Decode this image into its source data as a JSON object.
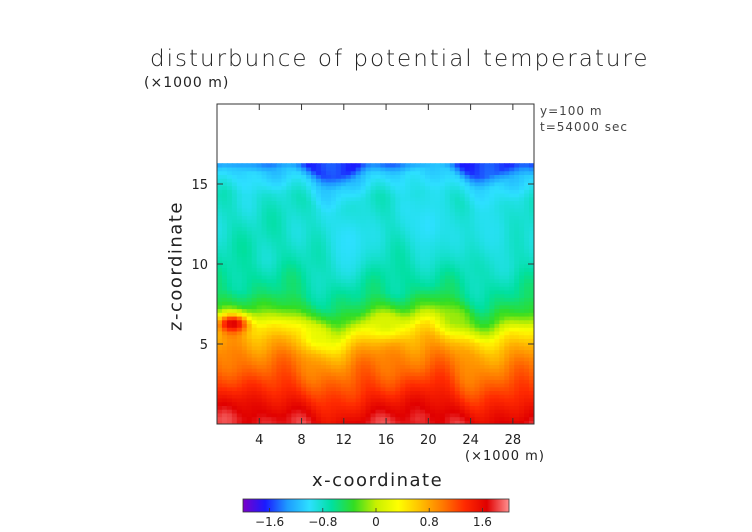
{
  "chart_data": {
    "type": "heatmap",
    "title": "disturbunce of potential temperature",
    "xlabel": "x-coordinate",
    "ylabel": "z-coordinate",
    "x_unit": "(×1000 m)",
    "y_unit": "(×1000 m)",
    "annotations": [
      "y=100 m",
      "t=54000 sec"
    ],
    "xlim": [
      0,
      30
    ],
    "ylim": [
      0,
      20
    ],
    "x_ticks": [
      4,
      8,
      12,
      16,
      20,
      24,
      28
    ],
    "y_ticks": [
      5,
      10,
      15
    ],
    "data_top_z": 16.3,
    "colorbar": {
      "range": [
        -2.0,
        2.0
      ],
      "ticks": [
        -1.6,
        -0.8,
        0,
        0.8,
        1.6
      ],
      "tick_labels": [
        "−1.6",
        "−0.8",
        "0",
        "0.8",
        "1.6"
      ],
      "colors": [
        "#7a00c8",
        "#1a1aff",
        "#1e9bff",
        "#2de0ff",
        "#00e0a0",
        "#33dd22",
        "#c8f000",
        "#ffff00",
        "#ffc000",
        "#ff7a00",
        "#ff2a00",
        "#e00000",
        "#ff9090"
      ]
    },
    "z_profile": [
      {
        "z": 0.0,
        "value": 1.75
      },
      {
        "z": 1.0,
        "value": 1.55
      },
      {
        "z": 2.0,
        "value": 1.3
      },
      {
        "z": 3.0,
        "value": 1.1
      },
      {
        "z": 4.0,
        "value": 0.95
      },
      {
        "z": 5.0,
        "value": 0.75
      },
      {
        "z": 5.8,
        "value": 0.45
      },
      {
        "z": 6.4,
        "value": 0.0
      },
      {
        "z": 7.0,
        "value": -0.35
      },
      {
        "z": 8.0,
        "value": -0.6
      },
      {
        "z": 10.0,
        "value": -0.75
      },
      {
        "z": 12.0,
        "value": -0.8
      },
      {
        "z": 14.0,
        "value": -0.85
      },
      {
        "z": 15.5,
        "value": -1.1
      },
      {
        "z": 16.3,
        "value": -1.6
      }
    ],
    "features": [
      {
        "kind": "warm_blob",
        "x": 1.5,
        "z": 6.3,
        "value": 1.7
      },
      {
        "kind": "cool_pocket",
        "x": 9.5,
        "z": 5.5,
        "value": 0.2
      },
      {
        "kind": "cool_pocket",
        "x": 16.0,
        "z": 6.3,
        "value": 0.1
      },
      {
        "kind": "cool_pocket",
        "x": 22.5,
        "z": 6.6,
        "value": -0.1
      },
      {
        "kind": "swirl",
        "x": 12.5,
        "z": 11.5,
        "value": -1.0
      },
      {
        "kind": "swirl",
        "x": 20.0,
        "z": 12.5,
        "value": -1.0
      },
      {
        "kind": "swirl",
        "x": 26.0,
        "z": 12.0,
        "value": -0.95
      }
    ]
  }
}
